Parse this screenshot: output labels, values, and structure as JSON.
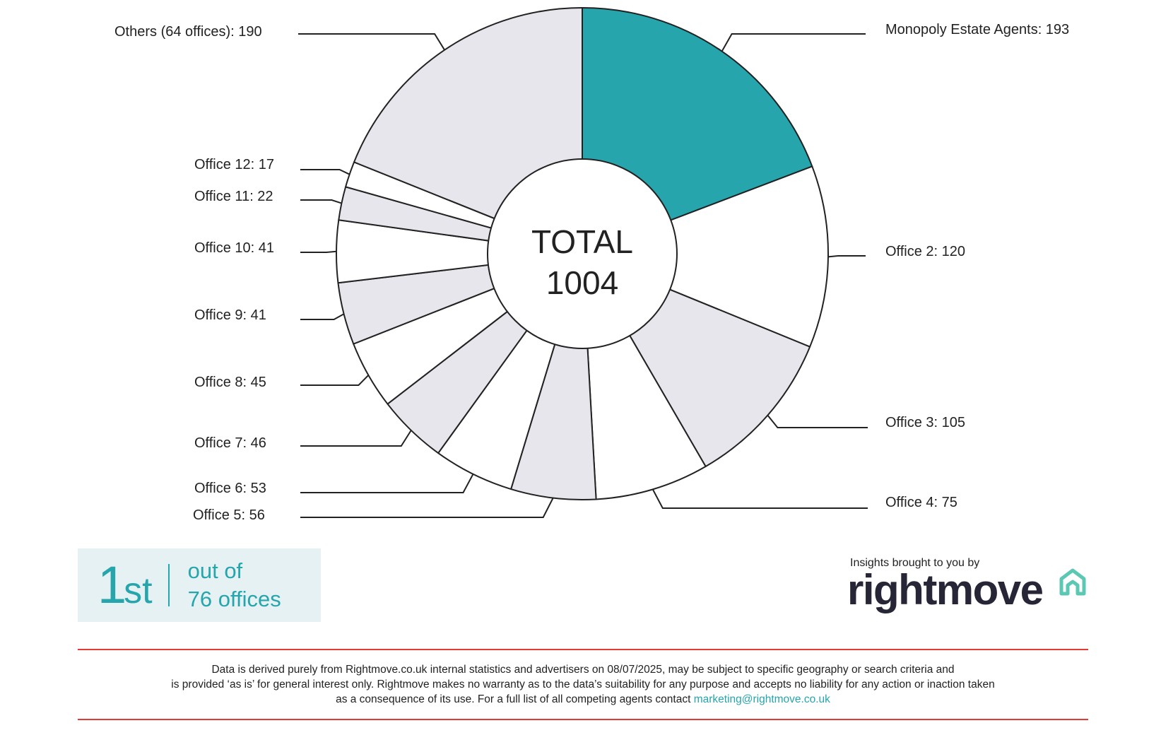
{
  "chart_data": {
    "type": "pie",
    "style": "donut",
    "center_text": [
      "TOTAL",
      "1004"
    ],
    "total": 1004,
    "slices": [
      {
        "label": "Monopoly Estate Agents: 193",
        "name": "Monopoly Estate Agents",
        "value": 193,
        "color": "#26a5ad"
      },
      {
        "label": "Office 2: 120",
        "name": "Office 2",
        "value": 120,
        "color": "#ffffff"
      },
      {
        "label": "Office 3: 105",
        "name": "Office 3",
        "value": 105,
        "color": "#e6e6ec"
      },
      {
        "label": "Office 4: 75",
        "name": "Office 4",
        "value": 75,
        "color": "#ffffff"
      },
      {
        "label": "Office 5: 56",
        "name": "Office 5",
        "value": 56,
        "color": "#e6e6ec"
      },
      {
        "label": "Office 6: 53",
        "name": "Office 6",
        "value": 53,
        "color": "#ffffff"
      },
      {
        "label": "Office 7: 46",
        "name": "Office 7",
        "value": 46,
        "color": "#e6e6ec"
      },
      {
        "label": "Office 8: 45",
        "name": "Office 8",
        "value": 45,
        "color": "#ffffff"
      },
      {
        "label": "Office 9: 41",
        "name": "Office 9",
        "value": 41,
        "color": "#e6e6ec"
      },
      {
        "label": "Office 10: 41",
        "name": "Office 10",
        "value": 41,
        "color": "#ffffff"
      },
      {
        "label": "Office 11: 22",
        "name": "Office 11",
        "value": 22,
        "color": "#e6e6ec"
      },
      {
        "label": "Office 12: 17",
        "name": "Office 12",
        "value": 17,
        "color": "#ffffff"
      },
      {
        "label": "Others (64 offices): 190",
        "name": "Others (64 offices)",
        "value": 190,
        "color": "#e6e6ec"
      }
    ]
  },
  "rank": {
    "position": "1",
    "suffix": "st",
    "line1": "out of",
    "line2": "76 offices"
  },
  "branding": {
    "insights_text": "Insights brought to you by",
    "logo_text": "rightmove",
    "logo_accent": "#5bc8b4",
    "logo_icon": "house-outline-icon"
  },
  "disclaimer": {
    "line1": "Data is derived purely from Rightmove.co.uk internal statistics and advertisers on 08/07/2025, may be subject to specific geography or search criteria and",
    "line2": "is provided ‘as is’ for general interest only. Rightmove makes no warranty as to the data’s suitability for any purpose and accepts no liability for any action or inaction taken",
    "line3": "as a consequence of its use. For a full list of all competing agents contact",
    "email": "marketing@rightmove.co.uk"
  },
  "colors": {
    "accent": "#26a5ad",
    "rule": "#e53935",
    "slice_grey": "#e6e6ec"
  }
}
